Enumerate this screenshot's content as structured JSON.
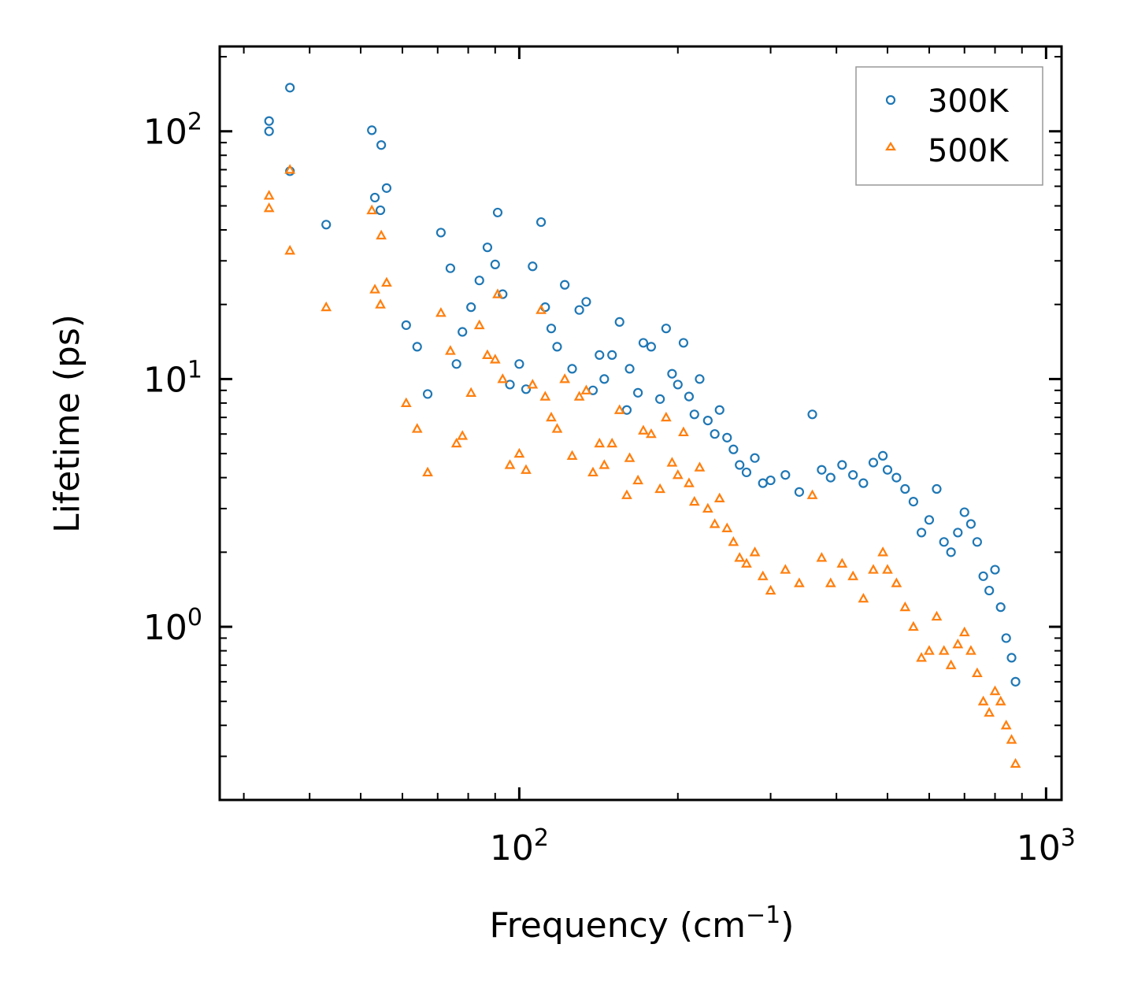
{
  "chart_data": {
    "type": "scatter",
    "title": "",
    "xlabel": "Frequency (cm",
    "xlabel_sup": "−1",
    "xlabel_close": ")",
    "ylabel": "Lifetime (ps)",
    "xscale": "log",
    "yscale": "log",
    "xlim": [
      27,
      1070
    ],
    "ylim": [
      0.2,
      220
    ],
    "x_tick_labels": [
      {
        "value": 100,
        "base": "10",
        "exp": "2"
      },
      {
        "value": 1000,
        "base": "10",
        "exp": "3"
      }
    ],
    "y_tick_labels": [
      {
        "value": 1,
        "base": "10",
        "exp": "0"
      },
      {
        "value": 10,
        "base": "10",
        "exp": "1"
      },
      {
        "value": 100,
        "base": "10",
        "exp": "2"
      }
    ],
    "legend": {
      "position": "top-right",
      "entries": [
        {
          "label": "300K",
          "color": "#1f77b4",
          "marker": "circle"
        },
        {
          "label": "500K",
          "color": "#ff7f0e",
          "marker": "triangle"
        }
      ]
    },
    "series": [
      {
        "name": "300K",
        "color": "#1f77b4",
        "marker": "circle",
        "x": [
          33.5,
          33.5,
          36.7,
          36.7,
          43,
          52.5,
          53.2,
          54.5,
          54.7,
          56,
          61,
          64,
          67,
          71,
          74,
          76,
          78,
          81,
          84,
          87,
          90,
          91,
          93,
          96,
          100,
          103,
          106,
          110,
          112,
          115,
          118,
          122,
          126,
          130,
          134,
          138,
          142,
          145,
          150,
          155,
          160,
          162,
          168,
          172,
          178,
          185,
          190,
          195,
          200,
          205,
          210,
          215,
          220,
          228,
          235,
          240,
          248,
          255,
          262,
          270,
          280,
          290,
          300,
          320,
          340,
          360,
          375,
          390,
          410,
          430,
          450,
          470,
          490,
          500,
          520,
          540,
          560,
          580,
          600,
          620,
          640,
          660,
          680,
          700,
          720,
          740,
          760,
          780,
          800,
          820,
          840,
          860,
          875
        ],
        "y": [
          110,
          100,
          150,
          69,
          42,
          101,
          54,
          48,
          88,
          59,
          16.5,
          13.5,
          8.7,
          39,
          28,
          11.5,
          15.5,
          19.5,
          25,
          34,
          29,
          47,
          22,
          9.5,
          11.5,
          9.1,
          28.5,
          43,
          19.5,
          16,
          13.5,
          24,
          11,
          19,
          20.5,
          9,
          12.5,
          10,
          12.5,
          17,
          7.5,
          11,
          8.8,
          14,
          13.5,
          8.3,
          16,
          10.5,
          9.5,
          14,
          8.5,
          7.2,
          10,
          6.8,
          6,
          7.5,
          5.8,
          5.2,
          4.5,
          4.2,
          4.8,
          3.8,
          3.9,
          4.1,
          3.5,
          7.2,
          4.3,
          4.0,
          4.5,
          4.1,
          3.8,
          4.6,
          4.9,
          4.3,
          4.0,
          3.6,
          3.2,
          2.4,
          2.7,
          3.6,
          2.2,
          2.0,
          2.4,
          2.9,
          2.6,
          2.2,
          1.6,
          1.4,
          1.7,
          1.2,
          0.9,
          0.75,
          0.6
        ]
      },
      {
        "name": "500K",
        "color": "#ff7f0e",
        "marker": "triangle",
        "x": [
          33.5,
          33.5,
          36.7,
          36.7,
          43,
          52.5,
          53.2,
          54.5,
          54.7,
          56,
          61,
          64,
          67,
          71,
          74,
          76,
          78,
          81,
          84,
          87,
          90,
          91,
          93,
          96,
          100,
          103,
          106,
          110,
          112,
          115,
          118,
          122,
          126,
          130,
          134,
          138,
          142,
          145,
          150,
          155,
          160,
          162,
          168,
          172,
          178,
          185,
          190,
          195,
          200,
          205,
          210,
          215,
          220,
          228,
          235,
          240,
          248,
          255,
          262,
          270,
          280,
          290,
          300,
          320,
          340,
          360,
          375,
          390,
          410,
          430,
          450,
          470,
          490,
          500,
          520,
          540,
          560,
          580,
          600,
          620,
          640,
          660,
          680,
          700,
          720,
          740,
          760,
          780,
          800,
          820,
          840,
          860,
          875
        ],
        "y": [
          55,
          49,
          70,
          33,
          19.5,
          48,
          23,
          20,
          38,
          24.5,
          8.0,
          6.3,
          4.2,
          18.5,
          13,
          5.5,
          5.9,
          8.8,
          16.5,
          12.5,
          12,
          22,
          10,
          4.5,
          5.0,
          4.3,
          9.5,
          19,
          8.5,
          7.0,
          6.3,
          10,
          4.9,
          8.5,
          9.0,
          4.2,
          5.5,
          4.5,
          5.5,
          7.5,
          3.4,
          4.8,
          3.9,
          6.2,
          6.0,
          3.6,
          7.0,
          4.6,
          4.1,
          6.1,
          3.8,
          3.2,
          4.4,
          3.0,
          2.6,
          3.3,
          2.5,
          2.2,
          1.9,
          1.8,
          2.0,
          1.6,
          1.4,
          1.7,
          1.5,
          3.4,
          1.9,
          1.5,
          1.8,
          1.6,
          1.3,
          1.7,
          2.0,
          1.7,
          1.5,
          1.2,
          1.0,
          0.75,
          0.8,
          1.1,
          0.8,
          0.7,
          0.85,
          0.95,
          0.8,
          0.65,
          0.5,
          0.45,
          0.55,
          0.5,
          0.4,
          0.35,
          0.28
        ]
      }
    ]
  }
}
